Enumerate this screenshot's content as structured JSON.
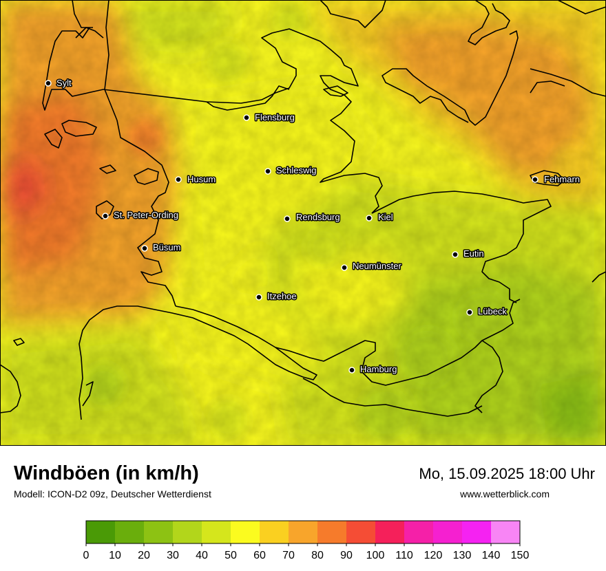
{
  "title": "Windböen (in km/h)",
  "model": "Modell: ICON-D2 09z, Deutscher Wetterdienst",
  "datetime": "Mo, 15.09.2025 18:00 Uhr",
  "website": "www.wetterblick.com",
  "cities": [
    {
      "name": "Sylt"
    },
    {
      "name": "Flensburg"
    },
    {
      "name": "Schleswig"
    },
    {
      "name": "Husum"
    },
    {
      "name": "Fehmarn"
    },
    {
      "name": "St. Peter-Ording"
    },
    {
      "name": "Rendsburg"
    },
    {
      "name": "Kiel"
    },
    {
      "name": "Büsum"
    },
    {
      "name": "Eutin"
    },
    {
      "name": "Neumünster"
    },
    {
      "name": "Itzehoe"
    },
    {
      "name": "Lübeck"
    },
    {
      "name": "Hamburg"
    }
  ],
  "legend": {
    "ticks": [
      "0",
      "10",
      "20",
      "30",
      "40",
      "50",
      "60",
      "70",
      "80",
      "90",
      "100",
      "110",
      "120",
      "130",
      "140",
      "150"
    ],
    "colors": [
      "#4a9a06",
      "#6aae0c",
      "#8dc213",
      "#b2d61b",
      "#d5e61c",
      "#fbfb1f",
      "#fad020",
      "#f8a52b",
      "#f67b2b",
      "#f54d35",
      "#f5205a",
      "#f520a8",
      "#f520d0",
      "#f522f2",
      "#f885f5"
    ]
  }
}
